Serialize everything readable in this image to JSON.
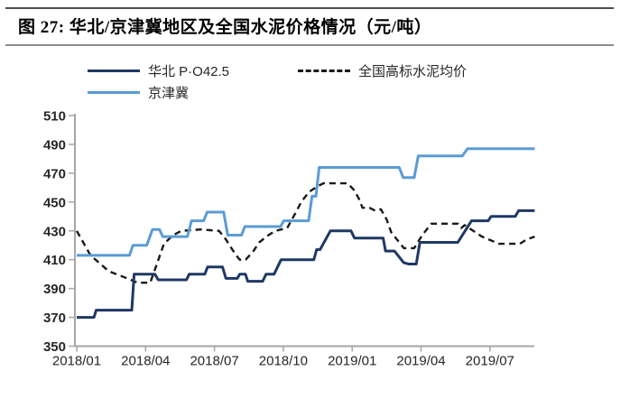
{
  "figure": {
    "title": "图 27:  华北/京津冀地区及全国水泥价格情况（元/吨）"
  },
  "legend": {
    "items": [
      {
        "label": "华北 P·O42.5",
        "color": "#1f3864",
        "style": "solid"
      },
      {
        "label": "京津冀",
        "color": "#5b9bd5",
        "style": "solid"
      },
      {
        "label": "全国高标水泥均价",
        "color": "#1a1a1a",
        "style": "dashed"
      }
    ]
  },
  "chart_data": {
    "type": "line",
    "title": "华北/京津冀地区及全国水泥价格情况",
    "unit": "元/吨",
    "axis_color": "#a6a6a6",
    "grid": false,
    "legend_position": "top",
    "x_axis": {
      "start": "2018/01",
      "end": "2019/09",
      "tick_labels": [
        "2018/01",
        "2018/04",
        "2018/07",
        "2018/10",
        "2019/01",
        "2019/04",
        "2019/07"
      ],
      "tick_months": [
        0,
        3,
        6,
        9,
        12,
        15,
        18
      ]
    },
    "y_axis": {
      "ticks": [
        350,
        370,
        390,
        410,
        430,
        450,
        470,
        490,
        510
      ],
      "range": [
        350,
        510
      ]
    },
    "series": [
      {
        "id": "huabei-po425",
        "name": "华北 P·O42.5",
        "color": "#1f3864",
        "dash": false,
        "points": [
          [
            0,
            370
          ],
          [
            0.75,
            370
          ],
          [
            0.85,
            375
          ],
          [
            2.4,
            375
          ],
          [
            2.5,
            400
          ],
          [
            3.4,
            400
          ],
          [
            3.55,
            396
          ],
          [
            4.78,
            396
          ],
          [
            4.9,
            400
          ],
          [
            5.58,
            400
          ],
          [
            5.7,
            405
          ],
          [
            6.35,
            405
          ],
          [
            6.5,
            397
          ],
          [
            7.0,
            397
          ],
          [
            7.1,
            400
          ],
          [
            7.35,
            400
          ],
          [
            7.45,
            395
          ],
          [
            8.1,
            395
          ],
          [
            8.25,
            400
          ],
          [
            8.6,
            400
          ],
          [
            8.9,
            410
          ],
          [
            10.33,
            410
          ],
          [
            10.45,
            417
          ],
          [
            10.6,
            417
          ],
          [
            11.05,
            430
          ],
          [
            11.95,
            430
          ],
          [
            12.1,
            425
          ],
          [
            13.35,
            425
          ],
          [
            13.45,
            416
          ],
          [
            13.84,
            416
          ],
          [
            14.24,
            408
          ],
          [
            14.45,
            407
          ],
          [
            14.79,
            407
          ],
          [
            14.95,
            422
          ],
          [
            16.6,
            422
          ],
          [
            17.2,
            437
          ],
          [
            17.92,
            437
          ],
          [
            18.05,
            440
          ],
          [
            19.1,
            440
          ],
          [
            19.25,
            444
          ],
          [
            19.95,
            444
          ]
        ]
      },
      {
        "id": "jingjinji",
        "name": "京津冀",
        "color": "#5b9bd5",
        "dash": false,
        "points": [
          [
            0,
            413
          ],
          [
            2.3,
            413
          ],
          [
            2.45,
            420
          ],
          [
            3.05,
            420
          ],
          [
            3.3,
            431
          ],
          [
            3.6,
            431
          ],
          [
            3.75,
            426
          ],
          [
            4.82,
            426
          ],
          [
            5.0,
            437
          ],
          [
            5.53,
            437
          ],
          [
            5.68,
            443
          ],
          [
            6.4,
            443
          ],
          [
            6.58,
            427
          ],
          [
            7.18,
            427
          ],
          [
            7.32,
            433
          ],
          [
            8.88,
            433
          ],
          [
            9.02,
            437
          ],
          [
            10.1,
            437
          ],
          [
            10.25,
            454
          ],
          [
            10.42,
            454
          ],
          [
            10.56,
            474
          ],
          [
            14.05,
            474
          ],
          [
            14.22,
            467
          ],
          [
            14.7,
            467
          ],
          [
            14.88,
            482
          ],
          [
            16.8,
            482
          ],
          [
            17.02,
            487
          ],
          [
            19.95,
            487
          ]
        ]
      },
      {
        "id": "national-avg",
        "name": "全国高标水泥均价",
        "color": "#1a1a1a",
        "dash": true,
        "points": [
          [
            0,
            430
          ],
          [
            0.6,
            413
          ],
          [
            1.4,
            402
          ],
          [
            2.2,
            397
          ],
          [
            2.65,
            394
          ],
          [
            3.2,
            394
          ],
          [
            3.45,
            405
          ],
          [
            3.8,
            421
          ],
          [
            4.2,
            427
          ],
          [
            4.55,
            430
          ],
          [
            5.4,
            431
          ],
          [
            6.2,
            430
          ],
          [
            6.5,
            424
          ],
          [
            6.78,
            417
          ],
          [
            7.0,
            412
          ],
          [
            7.1,
            410
          ],
          [
            7.36,
            410
          ],
          [
            7.7,
            416
          ],
          [
            7.95,
            422
          ],
          [
            8.35,
            427
          ],
          [
            8.65,
            430
          ],
          [
            9.17,
            432
          ],
          [
            9.55,
            443
          ],
          [
            9.78,
            450
          ],
          [
            10.12,
            457
          ],
          [
            10.5,
            461
          ],
          [
            10.75,
            463
          ],
          [
            11.8,
            463
          ],
          [
            12.1,
            458
          ],
          [
            12.3,
            452
          ],
          [
            12.45,
            446
          ],
          [
            12.75,
            446
          ],
          [
            13.0,
            444
          ],
          [
            13.25,
            445
          ],
          [
            13.5,
            438
          ],
          [
            13.7,
            429
          ],
          [
            14.1,
            421
          ],
          [
            14.25,
            418
          ],
          [
            14.7,
            418
          ],
          [
            15.05,
            427
          ],
          [
            15.45,
            435
          ],
          [
            16.6,
            435
          ],
          [
            16.75,
            432
          ],
          [
            16.9,
            434
          ],
          [
            17.65,
            426
          ],
          [
            18.25,
            422
          ],
          [
            18.4,
            421
          ],
          [
            19.3,
            421
          ],
          [
            19.6,
            424
          ],
          [
            19.95,
            426
          ]
        ]
      }
    ]
  }
}
